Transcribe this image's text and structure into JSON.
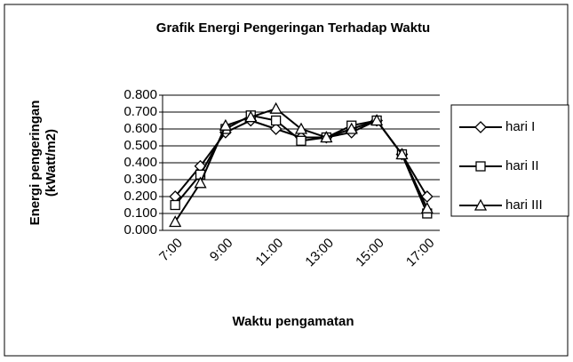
{
  "chart_data": {
    "type": "line",
    "title": "Grafik Energi Pengeringan Terhadap Waktu",
    "x_label": "Waktu pengamatan",
    "y_label": [
      "Energi pengeringan",
      "(kWatt/m2)"
    ],
    "categories": [
      "7:00",
      null,
      "9:00",
      null,
      "11:00",
      null,
      "13:00",
      null,
      "15:00",
      null,
      "17:00"
    ],
    "series": [
      {
        "name": "hari I",
        "color": "#000000",
        "marker": "diamond",
        "values": [
          0.2,
          0.38,
          0.58,
          0.65,
          0.6,
          0.55,
          0.55,
          0.58,
          0.65,
          0.45,
          0.2
        ]
      },
      {
        "name": "hari II",
        "color": "#000000",
        "marker": "square",
        "values": [
          0.15,
          0.33,
          0.6,
          0.68,
          0.65,
          0.53,
          0.55,
          0.62,
          0.65,
          0.45,
          0.1
        ]
      },
      {
        "name": "hari III",
        "color": "#000000",
        "marker": "triangle",
        "values": [
          0.05,
          0.28,
          0.62,
          0.67,
          0.72,
          0.6,
          0.55,
          0.6,
          0.65,
          0.45,
          0.13
        ]
      }
    ],
    "ylim": [
      0,
      0.8
    ],
    "yticks": [
      {
        "value": 0,
        "label": "0.000"
      },
      {
        "value": 0.1,
        "label": "0.100"
      },
      {
        "value": 0.2,
        "label": "0.200"
      },
      {
        "value": 0.3,
        "label": "0.300"
      },
      {
        "value": 0.4,
        "label": "0.400"
      },
      {
        "value": 0.5,
        "label": "0.500"
      },
      {
        "value": 0.6,
        "label": "0.600"
      },
      {
        "value": 0.7,
        "label": "0.700"
      },
      {
        "value": 0.8,
        "label": "0.800"
      }
    ],
    "grid": true,
    "legend": "right"
  }
}
